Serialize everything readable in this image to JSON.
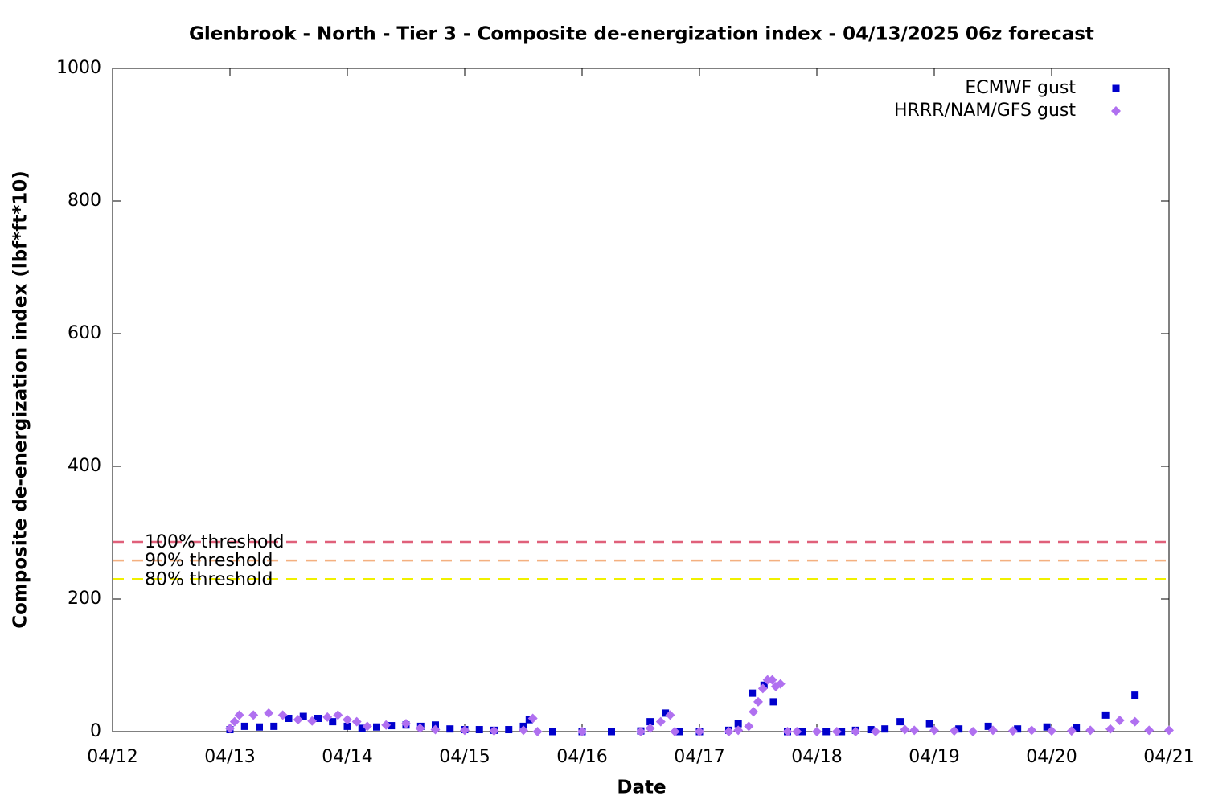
{
  "chart_data": {
    "type": "scatter",
    "title": "Glenbrook - North - Tier 3 - Composite de-energization index - 04/13/2025 06z forecast",
    "x_label": "Date",
    "y_label": "Composite de-energization index (lbf*ft*10)",
    "xlim": [
      0,
      9
    ],
    "xticks": [
      {
        "value": 0,
        "label": "04/12"
      },
      {
        "value": 1,
        "label": "04/13"
      },
      {
        "value": 2,
        "label": "04/14"
      },
      {
        "value": 3,
        "label": "04/15"
      },
      {
        "value": 4,
        "label": "04/16"
      },
      {
        "value": 5,
        "label": "04/17"
      },
      {
        "value": 6,
        "label": "04/18"
      },
      {
        "value": 7,
        "label": "04/19"
      },
      {
        "value": 8,
        "label": "04/20"
      },
      {
        "value": 9,
        "label": "04/21"
      }
    ],
    "ylim": [
      0,
      1000
    ],
    "yticks": [
      0,
      200,
      400,
      600,
      800,
      1000
    ],
    "legend_position": "top-right",
    "thresholds": [
      {
        "name": "100% threshold",
        "value": 286,
        "color": "#e0607a"
      },
      {
        "name": "90% threshold",
        "value": 258,
        "color": "#f4b080"
      },
      {
        "name": "80% threshold",
        "value": 230,
        "color": "#f0f000"
      }
    ],
    "series": [
      {
        "name": "ECMWF gust",
        "color": "#0000cc",
        "marker": "square",
        "x": [
          1.0,
          1.125,
          1.25,
          1.375,
          1.5,
          1.625,
          1.75,
          1.875,
          2.0,
          2.125,
          2.25,
          2.375,
          2.5,
          2.625,
          2.75,
          2.875,
          3.0,
          3.125,
          3.25,
          3.375,
          3.5,
          3.55,
          3.75,
          4.0,
          4.25,
          4.5,
          4.58,
          4.71,
          4.83,
          5.0,
          5.25,
          5.33,
          5.45,
          5.55,
          5.63,
          5.75,
          5.875,
          6.08,
          6.21,
          6.33,
          6.46,
          6.58,
          6.71,
          6.96,
          7.21,
          7.46,
          7.71,
          7.96,
          8.21,
          8.46,
          8.71
        ],
        "values": [
          3,
          8,
          7,
          8,
          20,
          23,
          20,
          15,
          8,
          5,
          7,
          9,
          10,
          8,
          10,
          4,
          3,
          3,
          2,
          3,
          8,
          18,
          0,
          0,
          0,
          1,
          15,
          28,
          0,
          0,
          2,
          12,
          58,
          70,
          45,
          0,
          0,
          0,
          0,
          2,
          3,
          4,
          15,
          12,
          4,
          8,
          4,
          7,
          6,
          25,
          55
        ]
      },
      {
        "name": "HRRR/NAM/GFS gust",
        "color": "#b070f0",
        "marker": "diamond",
        "x": [
          1.0,
          1.04,
          1.08,
          1.2,
          1.33,
          1.45,
          1.58,
          1.7,
          1.83,
          1.92,
          2.0,
          2.08,
          2.17,
          2.33,
          2.5,
          2.62,
          2.75,
          3.0,
          3.25,
          3.5,
          3.58,
          3.62,
          4.0,
          4.5,
          4.58,
          4.67,
          4.75,
          4.79,
          5.0,
          5.25,
          5.33,
          5.42,
          5.46,
          5.5,
          5.54,
          5.58,
          5.62,
          5.65,
          5.69,
          5.75,
          5.83,
          6.0,
          6.17,
          6.33,
          6.5,
          6.75,
          6.83,
          7.0,
          7.17,
          7.33,
          7.5,
          7.67,
          7.83,
          8.0,
          8.17,
          8.33,
          8.5,
          8.58,
          8.71,
          8.83,
          9.0
        ],
        "values": [
          5,
          15,
          25,
          25,
          28,
          25,
          18,
          16,
          22,
          25,
          18,
          15,
          8,
          10,
          12,
          5,
          3,
          2,
          1,
          2,
          20,
          0,
          0,
          0,
          5,
          15,
          25,
          0,
          0,
          0,
          2,
          8,
          30,
          45,
          65,
          78,
          78,
          68,
          72,
          0,
          0,
          0,
          0,
          0,
          0,
          3,
          2,
          2,
          1,
          0,
          2,
          1,
          2,
          1,
          1,
          2,
          4,
          17,
          15,
          2,
          2
        ]
      }
    ]
  }
}
